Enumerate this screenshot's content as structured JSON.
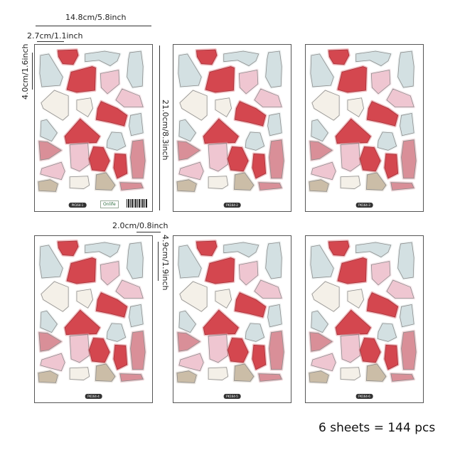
{
  "dimensions": {
    "sheet_width": "14.8cm/5.8inch",
    "sheet_height": "21.0cm/8.3inch",
    "sticker_width_large": "2.7cm/1.1inch",
    "sticker_height_large": "4.0cm/1.6inch",
    "sticker_width_small": "2.0cm/0.8inch",
    "sticker_height_small": "4.9cm/1.9inch"
  },
  "sheets": [
    {
      "code": "PK164-1"
    },
    {
      "code": "PK164-2"
    },
    {
      "code": "PK164-3"
    },
    {
      "code": "PK164-4"
    },
    {
      "code": "PK164-5"
    },
    {
      "code": "PK164-6"
    }
  ],
  "brand_logo": "Onlife",
  "total_label": "6 sheets = 144 pcs",
  "palette": {
    "red": "#d4474f",
    "blue": "#d3e0e2",
    "pink": "#efc6d1",
    "cream": "#f4f0e8",
    "tan": "#cbbda7",
    "rose": "#d98f98"
  }
}
